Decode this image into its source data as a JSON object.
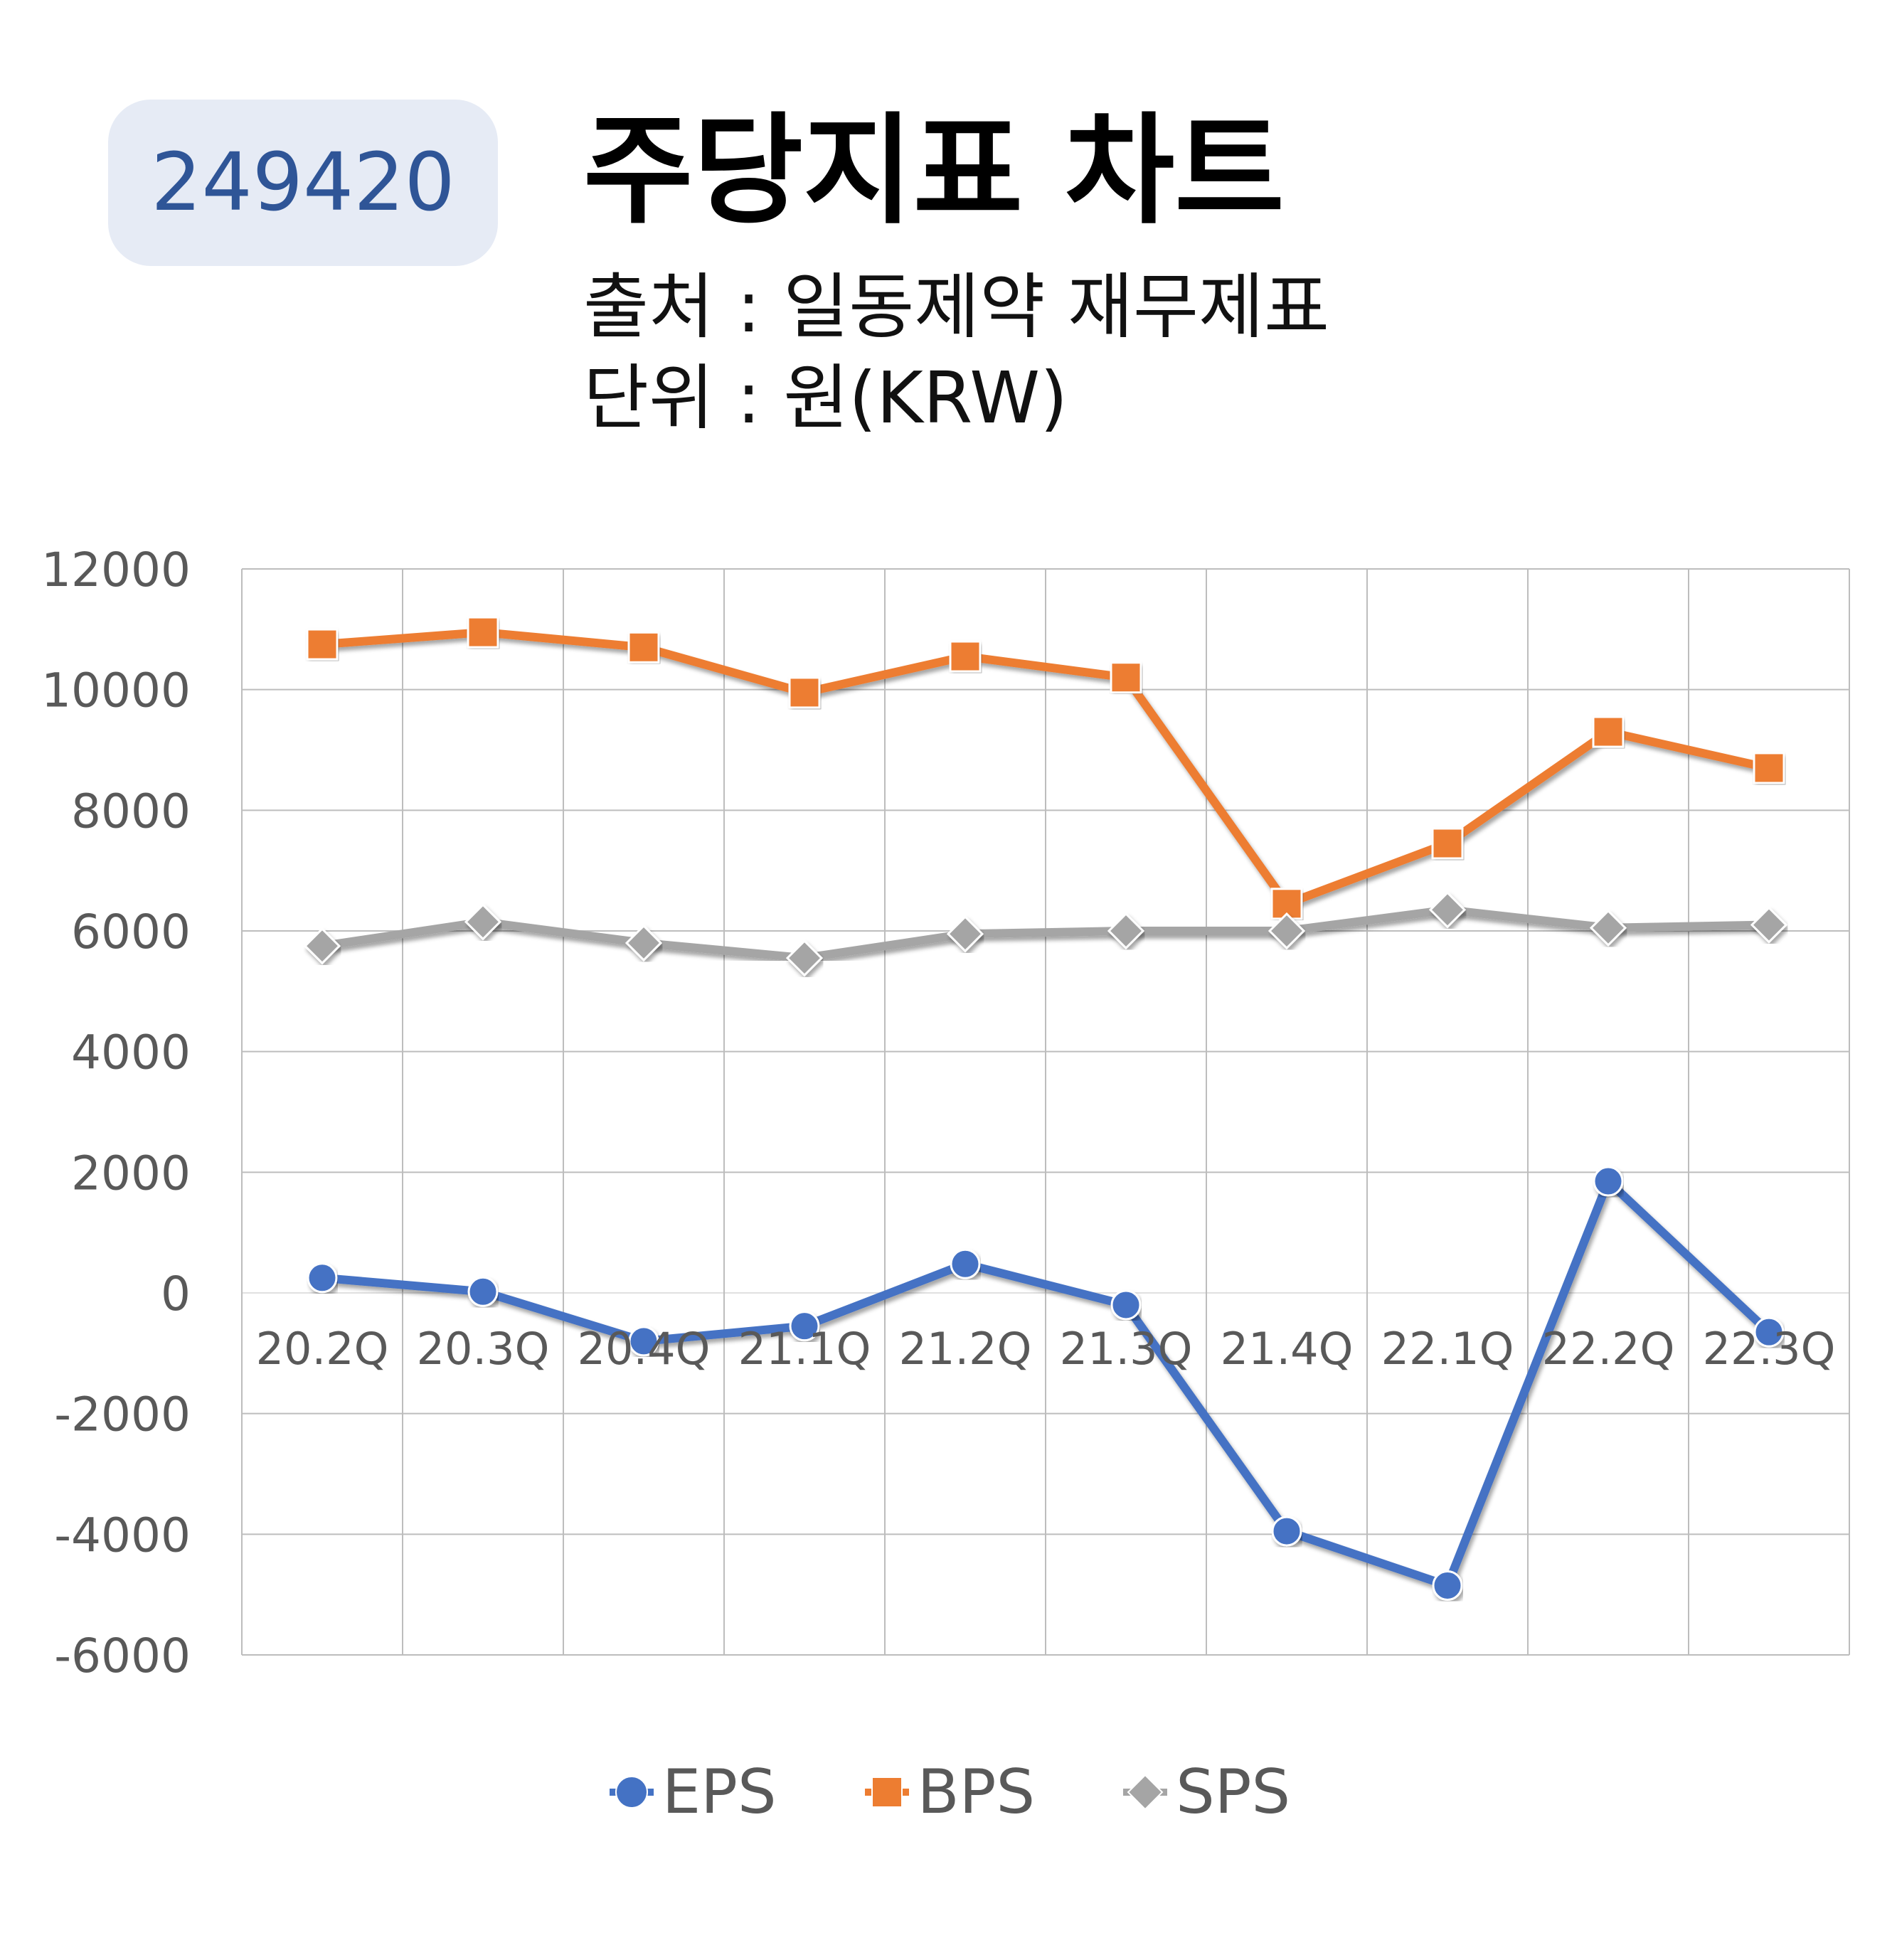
{
  "badge": {
    "code": "249420"
  },
  "header": {
    "title": "주당지표 차트",
    "source": "출처 : 일동제약 재무제표",
    "unit": "단위 : 원(KRW)"
  },
  "colors": {
    "EPS": "#4472c4",
    "BPS": "#ed7d31",
    "SPS": "#a5a5a5",
    "badge_text": "#2f5597",
    "badge_bg": "#e6ebf5"
  },
  "chart_data": {
    "type": "line",
    "categories": [
      "20.2Q",
      "20.3Q",
      "20.4Q",
      "21.1Q",
      "21.2Q",
      "21.3Q",
      "21.4Q",
      "22.1Q",
      "22.2Q",
      "22.3Q"
    ],
    "series": [
      {
        "name": "EPS",
        "marker": "circle",
        "values": [
          250,
          20,
          -800,
          -550,
          480,
          -200,
          -3950,
          -4850,
          1850,
          -650
        ]
      },
      {
        "name": "BPS",
        "marker": "square",
        "values": [
          10750,
          10950,
          10700,
          9950,
          10550,
          10200,
          6450,
          7450,
          9300,
          8700
        ]
      },
      {
        "name": "SPS",
        "marker": "diamond",
        "values": [
          5750,
          6150,
          5800,
          5550,
          5950,
          6000,
          6000,
          6350,
          6050,
          6100
        ]
      }
    ],
    "yticks": [
      "12000",
      "10000",
      "8000",
      "6000",
      "4000",
      "2000",
      "0",
      "-2000",
      "-4000",
      "-6000"
    ],
    "ylim": [
      -6000,
      12000
    ],
    "grid": true,
    "legend_position": "bottom"
  }
}
